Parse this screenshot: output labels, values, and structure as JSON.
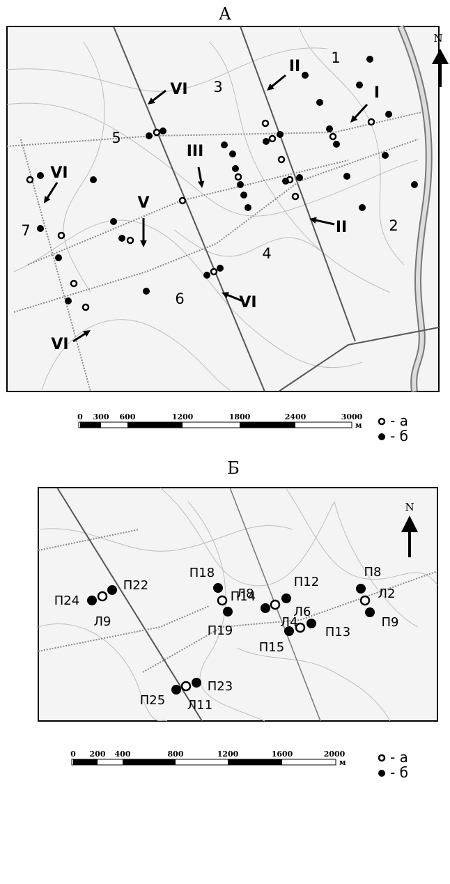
{
  "panel_a": {
    "title": "А",
    "north": "N",
    "zone_labels": [
      "1",
      "2",
      "3",
      "4",
      "5",
      "6",
      "7"
    ],
    "route_labels": [
      "VI",
      "II",
      "I",
      "III",
      "VI",
      "V",
      "II",
      "VI",
      "VI"
    ],
    "scale_labels": [
      "0",
      "300",
      "600",
      "1200",
      "1800",
      "2400",
      "3000"
    ],
    "scale_unit": "м",
    "legend": [
      "- а",
      "- б"
    ]
  },
  "panel_b": {
    "title": "Б",
    "north": "N",
    "point_labels": [
      "П24",
      "П22",
      "Л9",
      "П14",
      "П12",
      "Л4",
      "П8",
      "Л2",
      "П9",
      "П18",
      "Л8",
      "П19",
      "Л6",
      "П15",
      "П13",
      "П25",
      "П23",
      "Л11"
    ],
    "scale_labels": [
      "0",
      "200",
      "400",
      "800",
      "1200",
      "1600",
      "2000"
    ],
    "scale_unit": "м",
    "legend": [
      "- а",
      "- б"
    ]
  }
}
